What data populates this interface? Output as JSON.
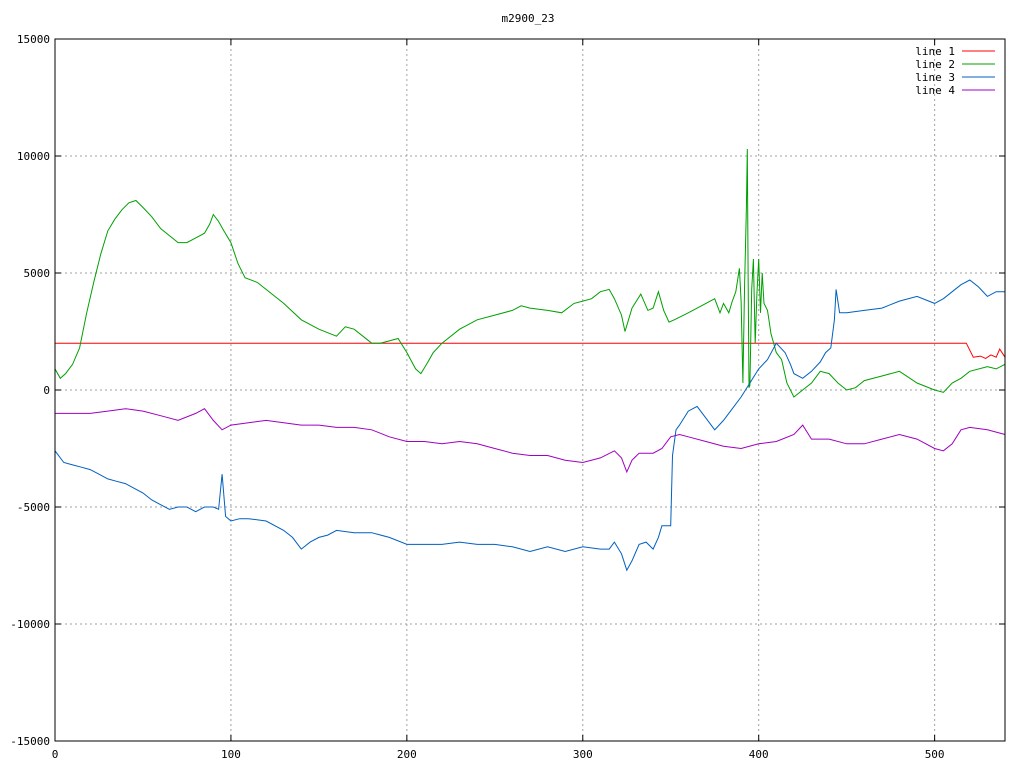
{
  "chart_data": {
    "type": "line",
    "title": "m2900_23",
    "xlabel": "",
    "ylabel": "",
    "xlim": [
      0,
      540
    ],
    "ylim": [
      -15000,
      15000
    ],
    "x_ticks": [
      0,
      100,
      200,
      300,
      400,
      500
    ],
    "y_ticks": [
      -15000,
      -10000,
      -5000,
      0,
      5000,
      10000,
      15000
    ],
    "grid": true,
    "legend_position": "top-right",
    "series": [
      {
        "name": "line 1",
        "color": "#ff0000",
        "points": [
          [
            0,
            2000
          ],
          [
            100,
            2000
          ],
          [
            200,
            2000
          ],
          [
            300,
            2000
          ],
          [
            400,
            2000
          ],
          [
            500,
            2000
          ],
          [
            518,
            2000
          ],
          [
            522,
            1400
          ],
          [
            526,
            1450
          ],
          [
            529,
            1350
          ],
          [
            532,
            1500
          ],
          [
            535,
            1400
          ],
          [
            537,
            1750
          ],
          [
            540,
            1400
          ]
        ]
      },
      {
        "name": "line 2",
        "color": "#00a000",
        "points": [
          [
            0,
            900
          ],
          [
            3,
            500
          ],
          [
            6,
            700
          ],
          [
            10,
            1100
          ],
          [
            14,
            1800
          ],
          [
            18,
            3300
          ],
          [
            22,
            4600
          ],
          [
            26,
            5800
          ],
          [
            30,
            6800
          ],
          [
            34,
            7300
          ],
          [
            38,
            7700
          ],
          [
            42,
            8000
          ],
          [
            46,
            8100
          ],
          [
            50,
            7800
          ],
          [
            55,
            7400
          ],
          [
            60,
            6900
          ],
          [
            65,
            6600
          ],
          [
            70,
            6300
          ],
          [
            75,
            6300
          ],
          [
            80,
            6500
          ],
          [
            85,
            6700
          ],
          [
            88,
            7100
          ],
          [
            90,
            7500
          ],
          [
            93,
            7200
          ],
          [
            96,
            6800
          ],
          [
            100,
            6300
          ],
          [
            104,
            5400
          ],
          [
            108,
            4800
          ],
          [
            115,
            4600
          ],
          [
            120,
            4300
          ],
          [
            130,
            3700
          ],
          [
            140,
            3000
          ],
          [
            150,
            2600
          ],
          [
            160,
            2300
          ],
          [
            165,
            2700
          ],
          [
            170,
            2600
          ],
          [
            175,
            2300
          ],
          [
            180,
            2000
          ],
          [
            185,
            2000
          ],
          [
            190,
            2100
          ],
          [
            195,
            2200
          ],
          [
            200,
            1600
          ],
          [
            205,
            900
          ],
          [
            208,
            700
          ],
          [
            212,
            1200
          ],
          [
            215,
            1600
          ],
          [
            220,
            2000
          ],
          [
            230,
            2600
          ],
          [
            240,
            3000
          ],
          [
            250,
            3200
          ],
          [
            260,
            3400
          ],
          [
            265,
            3600
          ],
          [
            270,
            3500
          ],
          [
            280,
            3400
          ],
          [
            288,
            3300
          ],
          [
            295,
            3700
          ],
          [
            300,
            3800
          ],
          [
            305,
            3900
          ],
          [
            310,
            4200
          ],
          [
            315,
            4300
          ],
          [
            318,
            3900
          ],
          [
            322,
            3200
          ],
          [
            324,
            2500
          ],
          [
            328,
            3500
          ],
          [
            333,
            4100
          ],
          [
            337,
            3400
          ],
          [
            340,
            3500
          ],
          [
            343,
            4200
          ],
          [
            346,
            3400
          ],
          [
            349,
            2900
          ],
          [
            352,
            3000
          ],
          [
            360,
            3300
          ],
          [
            370,
            3700
          ],
          [
            375,
            3900
          ],
          [
            378,
            3300
          ],
          [
            380,
            3700
          ],
          [
            383,
            3300
          ],
          [
            385,
            3800
          ],
          [
            387,
            4200
          ],
          [
            389,
            5200
          ],
          [
            390,
            3800
          ],
          [
            391,
            300
          ],
          [
            392,
            4500
          ],
          [
            393,
            7800
          ],
          [
            393.5,
            10300
          ],
          [
            394,
            5000
          ],
          [
            394.5,
            100
          ],
          [
            395,
            200
          ],
          [
            396,
            4300
          ],
          [
            397,
            5600
          ],
          [
            398,
            2000
          ],
          [
            399,
            4100
          ],
          [
            400,
            5600
          ],
          [
            401,
            3300
          ],
          [
            402,
            5000
          ],
          [
            403,
            3700
          ],
          [
            405,
            3400
          ],
          [
            407,
            2400
          ],
          [
            410,
            1600
          ],
          [
            413,
            1300
          ],
          [
            416,
            300
          ],
          [
            420,
            -300
          ],
          [
            425,
            0
          ],
          [
            430,
            300
          ],
          [
            435,
            800
          ],
          [
            440,
            700
          ],
          [
            445,
            300
          ],
          [
            450,
            0
          ],
          [
            455,
            100
          ],
          [
            460,
            400
          ],
          [
            470,
            600
          ],
          [
            480,
            800
          ],
          [
            490,
            300
          ],
          [
            500,
            0
          ],
          [
            505,
            -100
          ],
          [
            510,
            300
          ],
          [
            515,
            500
          ],
          [
            520,
            800
          ],
          [
            530,
            1000
          ],
          [
            535,
            900
          ],
          [
            540,
            1100
          ]
        ]
      },
      {
        "name": "line 3",
        "color": "#0060c0",
        "points": [
          [
            0,
            -2600
          ],
          [
            5,
            -3100
          ],
          [
            10,
            -3200
          ],
          [
            15,
            -3300
          ],
          [
            20,
            -3400
          ],
          [
            25,
            -3600
          ],
          [
            30,
            -3800
          ],
          [
            35,
            -3900
          ],
          [
            40,
            -4000
          ],
          [
            45,
            -4200
          ],
          [
            50,
            -4400
          ],
          [
            55,
            -4700
          ],
          [
            60,
            -4900
          ],
          [
            65,
            -5100
          ],
          [
            70,
            -5000
          ],
          [
            75,
            -5000
          ],
          [
            80,
            -5200
          ],
          [
            85,
            -5000
          ],
          [
            90,
            -5000
          ],
          [
            93,
            -5100
          ],
          [
            95,
            -3600
          ],
          [
            97,
            -5400
          ],
          [
            100,
            -5600
          ],
          [
            105,
            -5500
          ],
          [
            110,
            -5500
          ],
          [
            120,
            -5600
          ],
          [
            130,
            -6000
          ],
          [
            135,
            -6300
          ],
          [
            140,
            -6800
          ],
          [
            145,
            -6500
          ],
          [
            150,
            -6300
          ],
          [
            155,
            -6200
          ],
          [
            160,
            -6000
          ],
          [
            170,
            -6100
          ],
          [
            180,
            -6100
          ],
          [
            190,
            -6300
          ],
          [
            200,
            -6600
          ],
          [
            210,
            -6600
          ],
          [
            220,
            -6600
          ],
          [
            230,
            -6500
          ],
          [
            240,
            -6600
          ],
          [
            250,
            -6600
          ],
          [
            260,
            -6700
          ],
          [
            270,
            -6900
          ],
          [
            280,
            -6700
          ],
          [
            290,
            -6900
          ],
          [
            300,
            -6700
          ],
          [
            310,
            -6800
          ],
          [
            315,
            -6800
          ],
          [
            318,
            -6500
          ],
          [
            322,
            -7000
          ],
          [
            325,
            -7700
          ],
          [
            328,
            -7300
          ],
          [
            332,
            -6600
          ],
          [
            336,
            -6500
          ],
          [
            340,
            -6800
          ],
          [
            343,
            -6300
          ],
          [
            345,
            -5800
          ],
          [
            350,
            -5800
          ],
          [
            351,
            -2800
          ],
          [
            353,
            -1700
          ],
          [
            355,
            -1500
          ],
          [
            360,
            -900
          ],
          [
            365,
            -700
          ],
          [
            370,
            -1200
          ],
          [
            375,
            -1700
          ],
          [
            380,
            -1300
          ],
          [
            385,
            -800
          ],
          [
            390,
            -300
          ],
          [
            395,
            300
          ],
          [
            400,
            900
          ],
          [
            405,
            1300
          ],
          [
            410,
            2000
          ],
          [
            415,
            1600
          ],
          [
            418,
            1100
          ],
          [
            420,
            700
          ],
          [
            425,
            500
          ],
          [
            430,
            800
          ],
          [
            435,
            1200
          ],
          [
            438,
            1600
          ],
          [
            441,
            1800
          ],
          [
            443,
            3000
          ],
          [
            444,
            4300
          ],
          [
            446,
            3300
          ],
          [
            450,
            3300
          ],
          [
            460,
            3400
          ],
          [
            470,
            3500
          ],
          [
            480,
            3800
          ],
          [
            490,
            4000
          ],
          [
            500,
            3700
          ],
          [
            505,
            3900
          ],
          [
            510,
            4200
          ],
          [
            515,
            4500
          ],
          [
            520,
            4700
          ],
          [
            525,
            4400
          ],
          [
            530,
            4000
          ],
          [
            535,
            4200
          ],
          [
            540,
            4200
          ]
        ]
      },
      {
        "name": "line 4",
        "color": "#a000c0",
        "points": [
          [
            0,
            -1000
          ],
          [
            10,
            -1000
          ],
          [
            20,
            -1000
          ],
          [
            30,
            -900
          ],
          [
            40,
            -800
          ],
          [
            50,
            -900
          ],
          [
            60,
            -1100
          ],
          [
            70,
            -1300
          ],
          [
            80,
            -1000
          ],
          [
            85,
            -800
          ],
          [
            90,
            -1300
          ],
          [
            95,
            -1700
          ],
          [
            100,
            -1500
          ],
          [
            110,
            -1400
          ],
          [
            120,
            -1300
          ],
          [
            130,
            -1400
          ],
          [
            140,
            -1500
          ],
          [
            150,
            -1500
          ],
          [
            160,
            -1600
          ],
          [
            170,
            -1600
          ],
          [
            180,
            -1700
          ],
          [
            190,
            -2000
          ],
          [
            200,
            -2200
          ],
          [
            210,
            -2200
          ],
          [
            220,
            -2300
          ],
          [
            230,
            -2200
          ],
          [
            240,
            -2300
          ],
          [
            250,
            -2500
          ],
          [
            260,
            -2700
          ],
          [
            270,
            -2800
          ],
          [
            280,
            -2800
          ],
          [
            290,
            -3000
          ],
          [
            300,
            -3100
          ],
          [
            310,
            -2900
          ],
          [
            318,
            -2600
          ],
          [
            322,
            -2900
          ],
          [
            325,
            -3500
          ],
          [
            328,
            -3000
          ],
          [
            332,
            -2700
          ],
          [
            340,
            -2700
          ],
          [
            345,
            -2500
          ],
          [
            350,
            -2000
          ],
          [
            355,
            -1900
          ],
          [
            360,
            -2000
          ],
          [
            370,
            -2200
          ],
          [
            380,
            -2400
          ],
          [
            390,
            -2500
          ],
          [
            400,
            -2300
          ],
          [
            410,
            -2200
          ],
          [
            420,
            -1900
          ],
          [
            425,
            -1500
          ],
          [
            430,
            -2100
          ],
          [
            440,
            -2100
          ],
          [
            450,
            -2300
          ],
          [
            460,
            -2300
          ],
          [
            470,
            -2100
          ],
          [
            480,
            -1900
          ],
          [
            490,
            -2100
          ],
          [
            500,
            -2500
          ],
          [
            505,
            -2600
          ],
          [
            510,
            -2300
          ],
          [
            515,
            -1700
          ],
          [
            520,
            -1600
          ],
          [
            530,
            -1700
          ],
          [
            540,
            -1900
          ]
        ]
      }
    ]
  }
}
